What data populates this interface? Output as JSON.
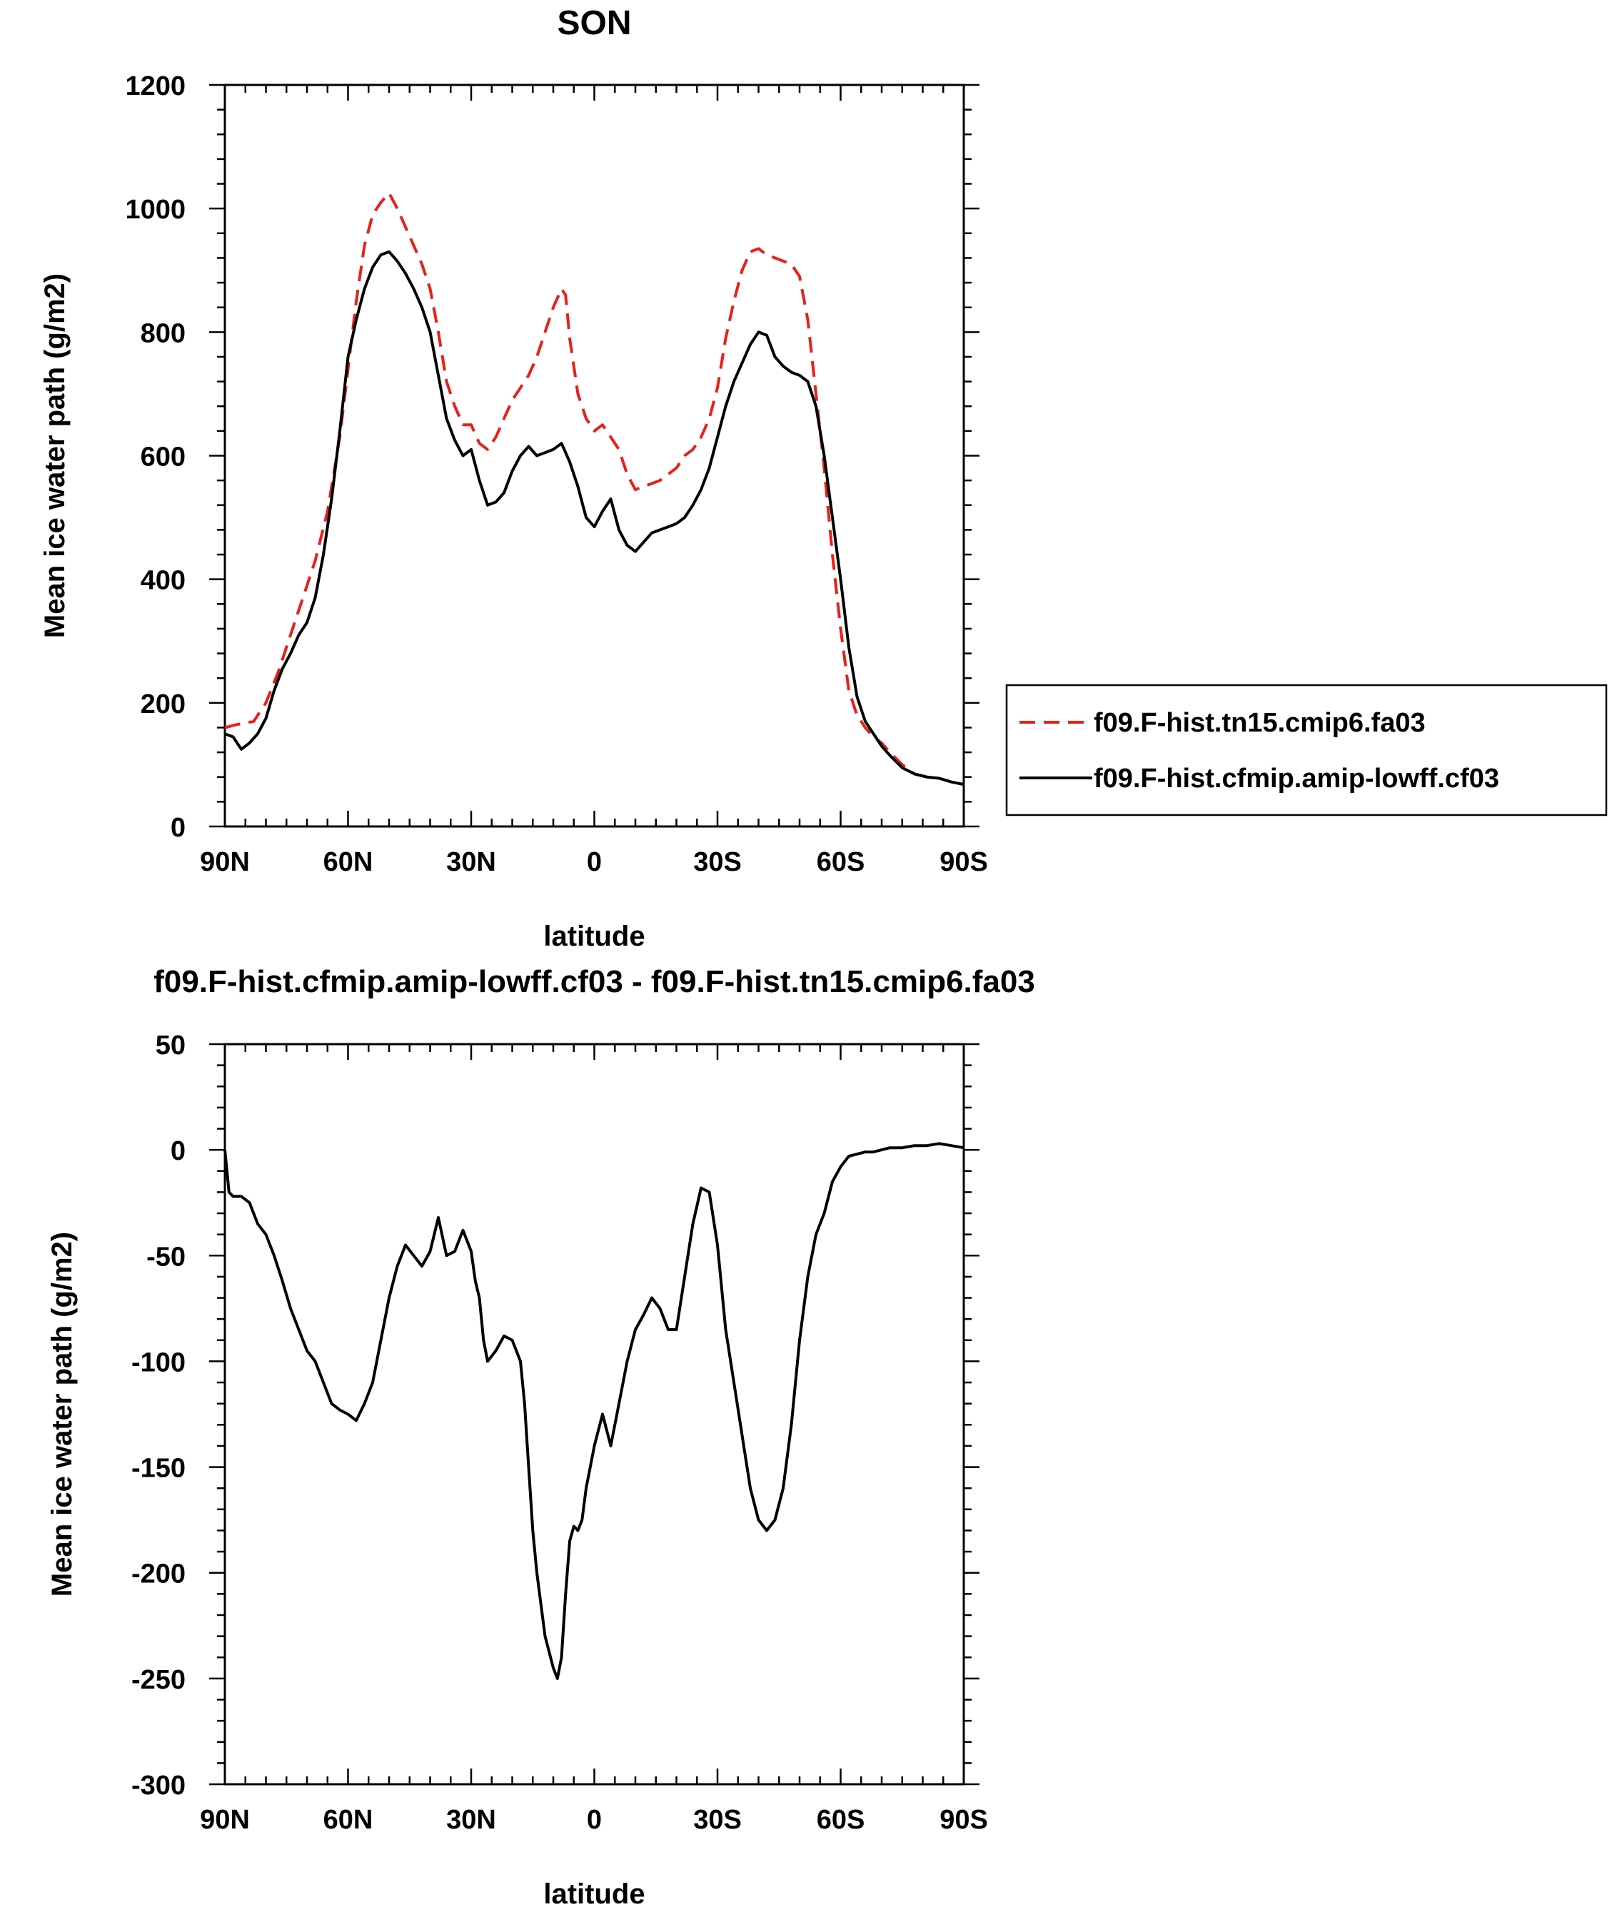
{
  "chart_data": [
    {
      "type": "line",
      "title": "SON",
      "xlabel": "latitude",
      "ylabel": "Mean ice water path (g/m2)",
      "xlim": [
        90,
        -90
      ],
      "ylim": [
        0,
        1200
      ],
      "x_ticks": [
        90,
        60,
        30,
        0,
        -30,
        -60,
        -90
      ],
      "x_tick_labels": [
        "90N",
        "60N",
        "30N",
        "0",
        "30S",
        "60S",
        "90S"
      ],
      "y_ticks": [
        0,
        200,
        400,
        600,
        800,
        1000,
        1200
      ],
      "y_tick_labels": [
        "0",
        "200",
        "400",
        "600",
        "800",
        "1000",
        "1200"
      ],
      "legend_position": "right",
      "series": [
        {
          "name": "f09.F-hist.tn15.cmip6.fa03",
          "color": "#e8201a",
          "dash": true,
          "x": [
            90,
            87,
            83,
            80,
            77,
            74,
            71,
            68,
            65,
            62,
            60,
            58,
            56,
            54,
            52,
            50,
            48,
            46,
            44,
            42,
            40,
            38,
            36,
            34,
            32,
            30,
            28,
            26,
            24,
            22,
            20,
            18,
            16,
            14,
            12,
            10,
            8,
            7,
            6,
            4,
            2,
            0,
            -2,
            -4,
            -6,
            -8,
            -10,
            -12,
            -14,
            -16,
            -18,
            -20,
            -22,
            -24,
            -26,
            -28,
            -30,
            -32,
            -34,
            -36,
            -38,
            -40,
            -42,
            -44,
            -46,
            -48,
            -50,
            -52,
            -54,
            -56,
            -58,
            -60,
            -62,
            -64,
            -66,
            -68,
            -70,
            -72,
            -75,
            -78,
            -81,
            -84,
            -87,
            -90
          ],
          "values": [
            160,
            165,
            170,
            200,
            250,
            310,
            370,
            430,
            510,
            630,
            740,
            850,
            940,
            990,
            1010,
            1025,
            1000,
            970,
            940,
            910,
            870,
            800,
            720,
            680,
            650,
            650,
            620,
            610,
            630,
            660,
            690,
            710,
            730,
            760,
            800,
            840,
            870,
            860,
            790,
            700,
            660,
            640,
            650,
            630,
            610,
            570,
            545,
            550,
            555,
            560,
            570,
            580,
            600,
            610,
            630,
            660,
            710,
            790,
            850,
            900,
            930,
            935,
            925,
            920,
            915,
            910,
            890,
            820,
            700,
            580,
            440,
            320,
            220,
            180,
            160,
            145,
            135,
            120,
            100,
            85,
            80,
            78,
            72,
            68
          ]
        },
        {
          "name": "f09.F-hist.cfmip.amip-lowff.cf03",
          "color": "#000000",
          "dash": false,
          "x": [
            90,
            88,
            86,
            84,
            82,
            80,
            78,
            76,
            74,
            72,
            70,
            68,
            66,
            64,
            62,
            60,
            58,
            56,
            54,
            52,
            50,
            48,
            46,
            44,
            42,
            40,
            38,
            36,
            34,
            32,
            30,
            28,
            26,
            24,
            22,
            20,
            18,
            16,
            14,
            12,
            10,
            8,
            7,
            6,
            4,
            2,
            0,
            -2,
            -4,
            -6,
            -8,
            -10,
            -12,
            -14,
            -16,
            -18,
            -20,
            -22,
            -24,
            -26,
            -28,
            -30,
            -32,
            -34,
            -36,
            -38,
            -40,
            -42,
            -44,
            -46,
            -48,
            -50,
            -52,
            -54,
            -56,
            -58,
            -60,
            -62,
            -64,
            -66,
            -68,
            -70,
            -72,
            -75,
            -78,
            -81,
            -84,
            -87,
            -90
          ],
          "values": [
            150,
            145,
            125,
            135,
            150,
            175,
            220,
            255,
            280,
            310,
            330,
            370,
            440,
            530,
            640,
            760,
            820,
            870,
            905,
            925,
            930,
            915,
            895,
            870,
            840,
            800,
            730,
            660,
            625,
            600,
            610,
            560,
            520,
            525,
            540,
            575,
            600,
            615,
            600,
            605,
            610,
            620,
            605,
            590,
            550,
            500,
            485,
            510,
            530,
            480,
            455,
            445,
            460,
            475,
            480,
            485,
            490,
            500,
            520,
            545,
            580,
            630,
            680,
            720,
            750,
            780,
            800,
            795,
            760,
            745,
            735,
            730,
            720,
            680,
            600,
            500,
            400,
            290,
            210,
            170,
            150,
            130,
            115,
            95,
            85,
            80,
            78,
            72,
            68
          ]
        }
      ]
    },
    {
      "type": "line",
      "title": "f09.F-hist.cfmip.amip-lowff.cf03 - f09.F-hist.tn15.cmip6.fa03",
      "xlabel": "latitude",
      "ylabel": "Mean ice water path (g/m2)",
      "xlim": [
        90,
        -90
      ],
      "ylim": [
        -300,
        50
      ],
      "x_ticks": [
        90,
        60,
        30,
        0,
        -30,
        -60,
        -90
      ],
      "x_tick_labels": [
        "90N",
        "60N",
        "30N",
        "0",
        "30S",
        "60S",
        "90S"
      ],
      "y_ticks": [
        -300,
        -250,
        -200,
        -150,
        -100,
        -50,
        0,
        50
      ],
      "y_tick_labels": [
        "-300",
        "-250",
        "-200",
        "-150",
        "-100",
        "-50",
        "0",
        "50"
      ],
      "series": [
        {
          "color": "#000000",
          "dash": false,
          "x": [
            90,
            89,
            88,
            86,
            84,
            82,
            80,
            78,
            76,
            74,
            72,
            70,
            68,
            66,
            64,
            62,
            60,
            58,
            56,
            54,
            52,
            50,
            48,
            46,
            44,
            42,
            40,
            38,
            36,
            34,
            32,
            30,
            29,
            28,
            27,
            26,
            24,
            22,
            20,
            18,
            17,
            16,
            15,
            14,
            12,
            10,
            9,
            8,
            7,
            6,
            5,
            4,
            3,
            2,
            1,
            0,
            -2,
            -4,
            -6,
            -8,
            -10,
            -12,
            -14,
            -16,
            -18,
            -20,
            -22,
            -24,
            -26,
            -28,
            -30,
            -32,
            -34,
            -36,
            -38,
            -40,
            -42,
            -44,
            -46,
            -48,
            -50,
            -52,
            -54,
            -56,
            -58,
            -60,
            -62,
            -64,
            -66,
            -68,
            -70,
            -72,
            -75,
            -78,
            -81,
            -84,
            -87,
            -90
          ],
          "values": [
            0,
            -20,
            -22,
            -22,
            -25,
            -35,
            -40,
            -50,
            -62,
            -75,
            -85,
            -95,
            -100,
            -110,
            -120,
            -123,
            -125,
            -128,
            -120,
            -110,
            -90,
            -70,
            -55,
            -45,
            -50,
            -55,
            -48,
            -32,
            -50,
            -48,
            -38,
            -48,
            -62,
            -70,
            -90,
            -100,
            -95,
            -88,
            -90,
            -100,
            -120,
            -150,
            -180,
            -200,
            -230,
            -245,
            -250,
            -240,
            -210,
            -185,
            -178,
            -180,
            -175,
            -160,
            -150,
            -140,
            -125,
            -140,
            -120,
            -100,
            -85,
            -78,
            -70,
            -75,
            -85,
            -85,
            -60,
            -35,
            -18,
            -20,
            -45,
            -85,
            -110,
            -135,
            -160,
            -175,
            -180,
            -175,
            -160,
            -130,
            -90,
            -60,
            -40,
            -30,
            -15,
            -8,
            -3,
            -2,
            -1,
            -1,
            0,
            1,
            1,
            2,
            2,
            3,
            2,
            1
          ]
        }
      ]
    }
  ]
}
